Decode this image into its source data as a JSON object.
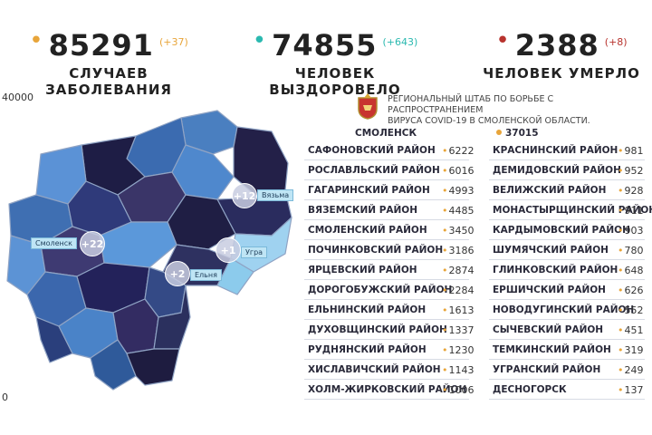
{
  "stats": [
    {
      "value": "85291",
      "delta": "(+37)",
      "label": "СЛУЧАЕВ ЗАБОЛЕВАНИЯ",
      "dot_color": "#e8a53a"
    },
    {
      "value": "74855",
      "delta": "(+643)",
      "label": "ЧЕЛОВЕК ВЫЗДОРОВЕЛО",
      "dot_color": "#2bb9b0"
    },
    {
      "value": "2388",
      "delta": "(+8)",
      "label": "ЧЕЛОВЕК УМЕРЛО",
      "dot_color": "#b8332e"
    }
  ],
  "axis": {
    "top": "40000",
    "bottom": "0"
  },
  "hq_text_line1": "РЕГИОНАЛЬНЫЙ ШТАБ ПО БОРЬБЕ С РАСПРОСТРАНЕНИЕМ",
  "hq_text_line2": "ВИРУСА COVID-19 В СМОЛЕНСКОЙ ОБЛАСТИ.",
  "city": {
    "name": "СМОЛЕНСК",
    "value": "37015"
  },
  "left_districts": [
    {
      "name": "САФОНОВСКИЙ РАЙОН",
      "value": "6222"
    },
    {
      "name": "РОСЛАВЛЬСКИЙ РАЙОН",
      "value": "6016"
    },
    {
      "name": "ГАГАРИНСКИЙ РАЙОН",
      "value": "4993"
    },
    {
      "name": "ВЯЗЕМСКИЙ РАЙОН",
      "value": "4485"
    },
    {
      "name": "СМОЛЕНСКИЙ РАЙОН",
      "value": "3450"
    },
    {
      "name": "ПОЧИНКОВСКИЙ РАЙОН",
      "value": "3186"
    },
    {
      "name": "ЯРЦЕВСКИЙ РАЙОН",
      "value": "2874"
    },
    {
      "name": "ДОРОГОБУЖСКИЙ РАЙОН",
      "value": "2284"
    },
    {
      "name": "ЕЛЬНИНСКИЙ РАЙОН",
      "value": "1613"
    },
    {
      "name": "ДУХОВЩИНСКИЙ РАЙОН",
      "value": "1337"
    },
    {
      "name": "РУДНЯНСКИЙ РАЙОН",
      "value": "1230"
    },
    {
      "name": "ХИСЛАВИЧСКИЙ РАЙОН",
      "value": "1143"
    },
    {
      "name": "ХОЛМ-ЖИРКОВСКИЙ РАЙОН",
      "value": "1006"
    }
  ],
  "right_districts": [
    {
      "name": "КРАСНИНСКИЙ РАЙОН",
      "value": "981"
    },
    {
      "name": "ДЕМИДОВСКИЙ РАЙОН",
      "value": "952"
    },
    {
      "name": "ВЕЛИЖСКИЙ РАЙОН",
      "value": "928"
    },
    {
      "name": "МОНАСТЫРЩИНСКИЙ РАЙОН",
      "value": "911"
    },
    {
      "name": "КАРДЫМОВСКИЙ РАЙОН",
      "value": "903"
    },
    {
      "name": "ШУМЯЧСКИЙ РАЙОН",
      "value": "780"
    },
    {
      "name": "ГЛИНКОВСКИЙ РАЙОН",
      "value": "648"
    },
    {
      "name": "ЕРШИЧСКИЙ РАЙОН",
      "value": "626"
    },
    {
      "name": "НОВОДУГИНСКИЙ РАЙОН",
      "value": "552"
    },
    {
      "name": "СЫЧЕВСКИЙ РАЙОН",
      "value": "451"
    },
    {
      "name": "ТЕМКИНСКИЙ РАЙОН",
      "value": "319"
    },
    {
      "name": "УГРАНСКИЙ РАЙОН",
      "value": "249"
    },
    {
      "name": "ДЕСНОГОРСК",
      "value": "137"
    }
  ],
  "map_labels": [
    {
      "name": "Вязьма",
      "delta": "+12"
    },
    {
      "name": "Смоленск",
      "delta": "+22"
    },
    {
      "name": "Угра",
      "delta": "+1"
    },
    {
      "name": "Ельня",
      "delta": "+2"
    }
  ]
}
